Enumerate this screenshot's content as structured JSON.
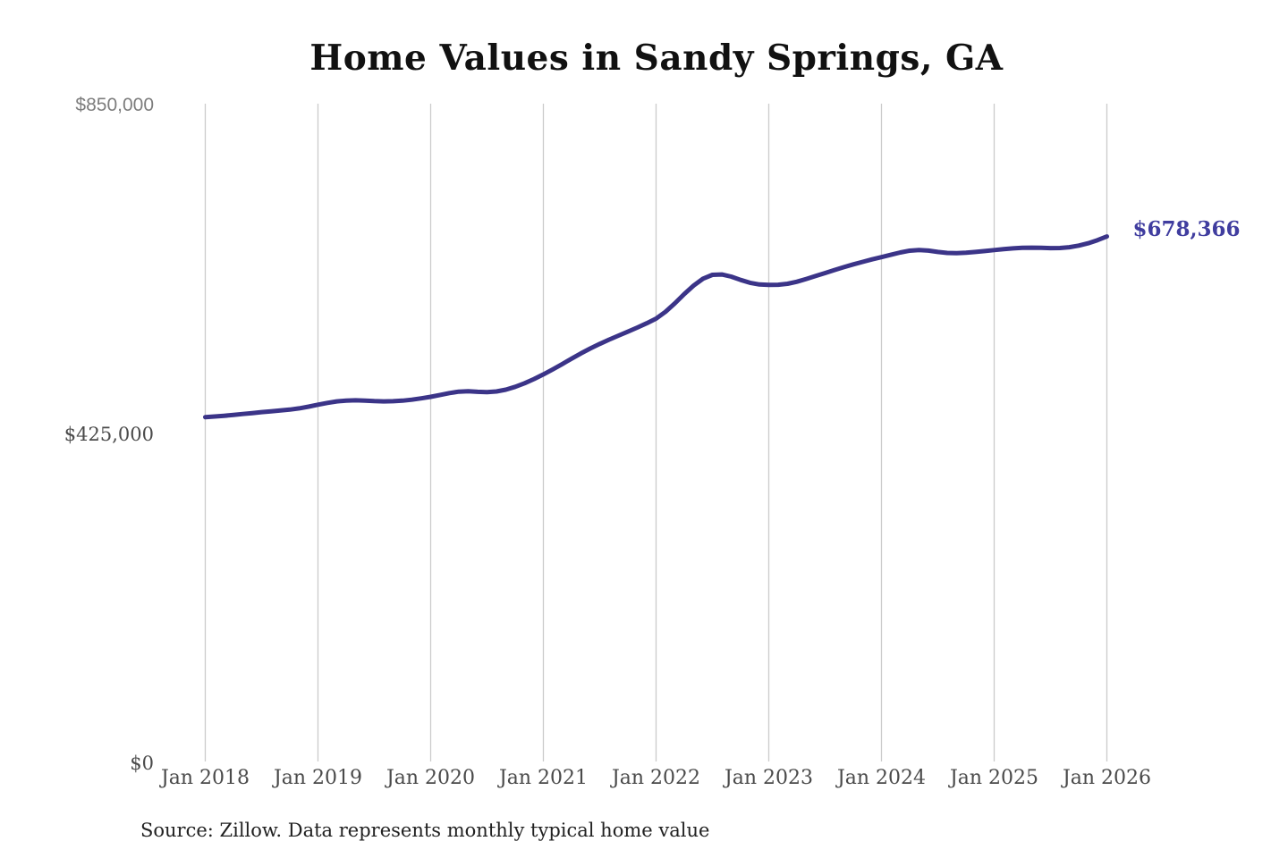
{
  "chart_data": {
    "type": "line",
    "title": "Home Values in Sandy Springs, GA",
    "source_note": "Source: Zillow. Data represents monthly typical home value",
    "latest_value": 678366,
    "latest_value_label": "$678,366",
    "x_tick_labels": [
      "Jan 2018",
      "Jan 2019",
      "Jan 2020",
      "Jan 2021",
      "Jan 2022",
      "Jan 2023",
      "Jan 2024",
      "Jan 2025",
      "Jan 2026"
    ],
    "y_ticks": [
      {
        "label": "$0",
        "value": 0
      },
      {
        "label": "$425,000",
        "value": 425000
      },
      {
        "label": "$850,000",
        "value": 850000
      }
    ],
    "ylim": [
      0,
      850000
    ],
    "grid": "vertical",
    "legend": "none",
    "line_color": "#3b3488",
    "label_color": "#403d9f",
    "gridline_color": "#cbcbcb",
    "series": [
      {
        "name": "Monthly typical home value",
        "months": [
          "2018-01",
          "2018-02",
          "2018-03",
          "2018-04",
          "2018-05",
          "2018-06",
          "2018-07",
          "2018-08",
          "2018-09",
          "2018-10",
          "2018-11",
          "2018-12",
          "2019-01",
          "2019-02",
          "2019-03",
          "2019-04",
          "2019-05",
          "2019-06",
          "2019-07",
          "2019-08",
          "2019-09",
          "2019-10",
          "2019-11",
          "2019-12",
          "2020-01",
          "2020-02",
          "2020-03",
          "2020-04",
          "2020-05",
          "2020-06",
          "2020-07",
          "2020-08",
          "2020-09",
          "2020-10",
          "2020-11",
          "2020-12",
          "2021-01",
          "2021-02",
          "2021-03",
          "2021-04",
          "2021-05",
          "2021-06",
          "2021-07",
          "2021-08",
          "2021-09",
          "2021-10",
          "2021-11",
          "2021-12",
          "2022-01",
          "2022-02",
          "2022-03",
          "2022-04",
          "2022-05",
          "2022-06",
          "2022-07",
          "2022-08",
          "2022-09",
          "2022-10",
          "2022-11",
          "2022-12",
          "2023-01",
          "2023-02",
          "2023-03",
          "2023-04",
          "2023-05",
          "2023-06",
          "2023-07",
          "2023-08",
          "2023-09",
          "2023-10",
          "2023-11",
          "2023-12",
          "2024-01",
          "2024-02",
          "2024-03",
          "2024-04",
          "2024-05",
          "2024-06",
          "2024-07",
          "2024-08",
          "2024-09",
          "2024-10",
          "2024-11",
          "2024-12",
          "2025-01",
          "2025-02",
          "2025-03",
          "2025-04",
          "2025-05",
          "2025-06",
          "2025-07",
          "2025-08",
          "2025-09",
          "2025-10",
          "2025-11",
          "2025-12",
          "2026-01"
        ],
        "values": [
          445000,
          445800,
          446700,
          447800,
          449000,
          450200,
          451400,
          452500,
          453500,
          454700,
          456300,
          458500,
          461000,
          463400,
          465300,
          466400,
          466700,
          466300,
          465700,
          465300,
          465500,
          466200,
          467500,
          469200,
          471200,
          473600,
          476100,
          477900,
          478400,
          477700,
          477300,
          478100,
          480400,
          484100,
          488800,
          494200,
          500200,
          506700,
          513500,
          520500,
          527300,
          533700,
          539600,
          545100,
          550300,
          555400,
          560700,
          566300,
          572300,
          581000,
          592000,
          604000,
          615000,
          623900,
          628800,
          629300,
          626500,
          622300,
          618600,
          616400,
          615800,
          616000,
          617300,
          620000,
          623500,
          627300,
          631200,
          635100,
          638800,
          642300,
          645600,
          648800,
          651700,
          654700,
          657700,
          660000,
          660900,
          660100,
          658400,
          657100,
          656800,
          657400,
          658400,
          659600,
          660800,
          662000,
          663000,
          663700,
          664000,
          663800,
          663400,
          663500,
          664500,
          666600,
          669600,
          673600,
          678366
        ]
      }
    ]
  }
}
